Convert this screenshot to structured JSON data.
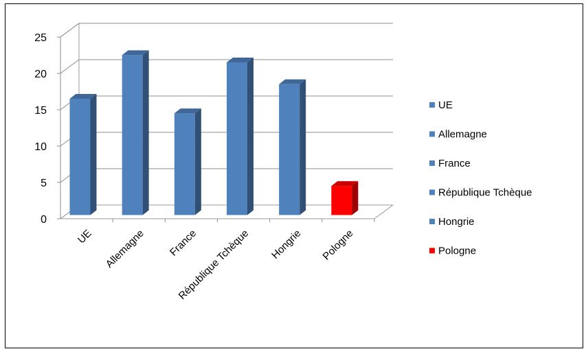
{
  "chart_data": {
    "type": "bar",
    "categories": [
      "UE",
      "Allemagne",
      "France",
      "République Tchèque",
      "Hongrie",
      "Pologne"
    ],
    "values": [
      16,
      22,
      14,
      21,
      18,
      4
    ],
    "colors": [
      "#4F81BD",
      "#4F81BD",
      "#4F81BD",
      "#4F81BD",
      "#4F81BD",
      "#FF0000"
    ],
    "ylim": [
      0,
      25
    ],
    "yticks": [
      0,
      5,
      10,
      15,
      20,
      25
    ],
    "grid": true,
    "legend_position": "right",
    "three_d": true,
    "legend": [
      {
        "label": "UE",
        "color": "#4F81BD"
      },
      {
        "label": "Allemagne",
        "color": "#4F81BD"
      },
      {
        "label": "France",
        "color": "#4F81BD"
      },
      {
        "label": "République Tchèque",
        "color": "#4F81BD"
      },
      {
        "label": "Hongrie",
        "color": "#4F81BD"
      },
      {
        "label": "Pologne",
        "color": "#FF0000"
      }
    ]
  }
}
